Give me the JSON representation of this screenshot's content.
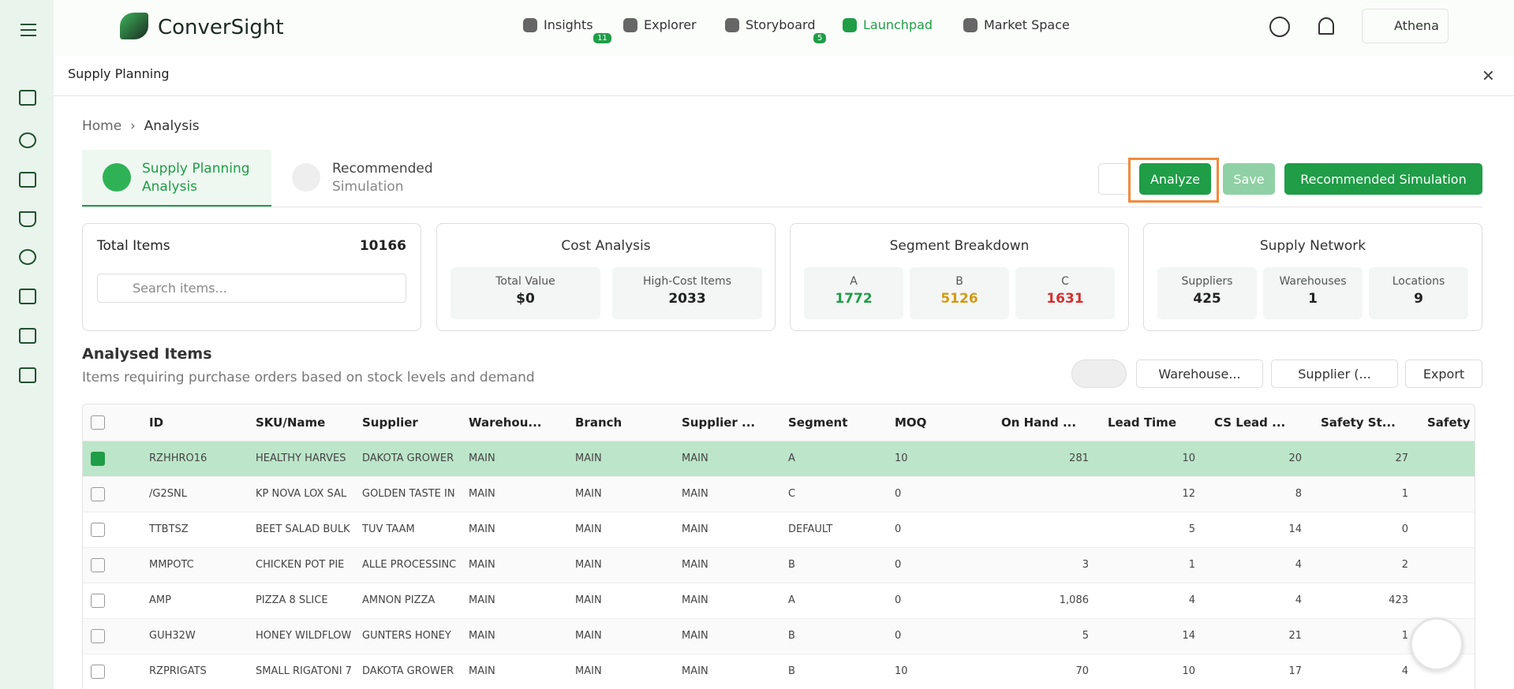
{
  "nav": {
    "logo": "ConverSight",
    "items": [
      {
        "label": "Insights",
        "badge": "11"
      },
      {
        "label": "Explorer"
      },
      {
        "label": "Storyboard",
        "badge": "5"
      },
      {
        "label": "Launchpad"
      },
      {
        "label": "Market Space"
      }
    ],
    "user": "Athena"
  },
  "header": {
    "title": "Supply Planning"
  },
  "breadcrumb": [
    "Home",
    "Analysis"
  ],
  "tabs": [
    {
      "title": "Supply Planning",
      "subtitle": "Analysis"
    },
    {
      "title": "Recommended",
      "subtitle": "Simulation"
    }
  ],
  "actions": [
    "Analyze",
    "Save",
    "Recommended Simulation"
  ],
  "cards": {
    "total": {
      "label": "Total Items",
      "value": 10166,
      "search": "Search items..."
    },
    "cost": {
      "title": "Cost Analysis",
      "stats": [
        {
          "label": "Total Value",
          "value": "$0"
        },
        {
          "label": "High-Cost Items",
          "value": "2033"
        }
      ]
    },
    "segment": {
      "title": "Segment Breakdown",
      "stats": [
        {
          "label": "A",
          "value": "1772"
        },
        {
          "label": "B",
          "value": "5126"
        },
        {
          "label": "C",
          "value": "1631"
        }
      ]
    },
    "network": {
      "title": "Supply Network",
      "stats": [
        {
          "label": "Suppliers",
          "value": "425"
        },
        {
          "label": "Warehouses",
          "value": "1"
        },
        {
          "label": "Locations",
          "value": "9"
        }
      ]
    }
  },
  "section": {
    "title": "Analysed Items",
    "subtitle": "Items requiring purchase orders based on stock levels and demand"
  },
  "toolbar": [
    "Warehouse...",
    "Supplier (...",
    "Export"
  ],
  "table": {
    "columns": [
      "ID",
      "SKU/Name",
      "Supplier",
      "Warehou...",
      "Branch",
      "Supplier ...",
      "Segment",
      "MOQ",
      "On Hand ...",
      "Lead Time",
      "CS Lead ...",
      "Safety St...",
      "Safety Da..."
    ],
    "rows": [
      [
        "RZHHRO16",
        "HEALTHY HARVES",
        "DAKOTA GROWER",
        "MAIN",
        "MAIN",
        "MAIN",
        "A",
        "10",
        "281",
        "10",
        "20",
        "27",
        null
      ],
      [
        "/G2SNL",
        "KP NOVA LOX SAL",
        "GOLDEN TASTE IN",
        "MAIN",
        "MAIN",
        "MAIN",
        "C",
        "0",
        null,
        "12",
        "8",
        "1",
        null
      ],
      [
        "TTBTSZ",
        "BEET SALAD BULK",
        "TUV TAAM",
        "MAIN",
        "MAIN",
        "MAIN",
        "DEFAULT",
        "0",
        null,
        "5",
        "14",
        "0",
        null
      ],
      [
        "MMPOTC",
        "CHICKEN POT PIE",
        "ALLE PROCESSINC",
        "MAIN",
        "MAIN",
        "MAIN",
        "B",
        "0",
        "3",
        "1",
        "4",
        "2",
        null
      ],
      [
        "AMP",
        "PIZZA 8 SLICE",
        "AMNON PIZZA",
        "MAIN",
        "MAIN",
        "MAIN",
        "A",
        "0",
        "1,086",
        "4",
        "4",
        "423",
        null
      ],
      [
        "GUH32W",
        "HONEY WILDFLOW",
        "GUNTERS HONEY",
        "MAIN",
        "MAIN",
        "MAIN",
        "B",
        "0",
        "5",
        "14",
        "21",
        "1",
        null
      ],
      [
        "RZPRIGATS",
        "SMALL RIGATONI 7",
        "DAKOTA GROWER",
        "MAIN",
        "MAIN",
        "MAIN",
        "B",
        "10",
        "70",
        "10",
        "17",
        "4",
        null
      ]
    ]
  }
}
